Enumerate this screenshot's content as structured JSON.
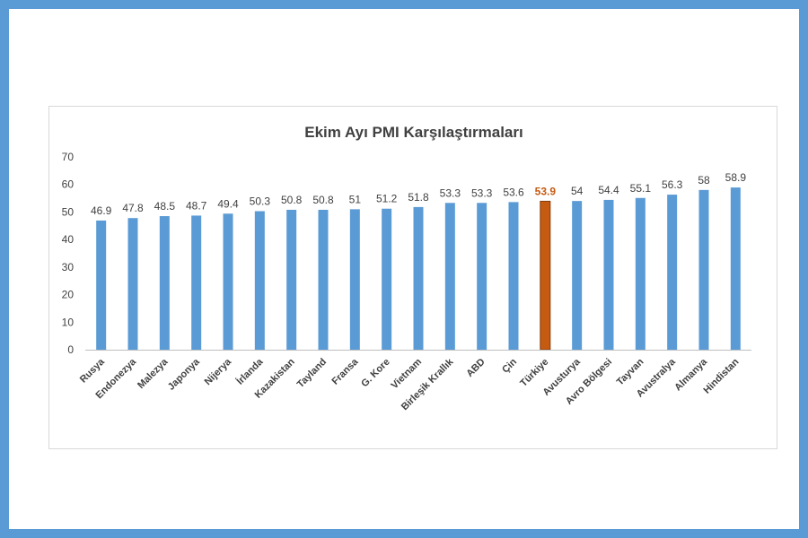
{
  "chart_data": {
    "type": "bar",
    "title": "Ekim Ayı PMI Karşılaştırmaları",
    "xlabel": "",
    "ylabel": "",
    "ylim": [
      0,
      70
    ],
    "yticks": [
      0,
      10,
      20,
      30,
      40,
      50,
      60,
      70
    ],
    "grid": false,
    "legend": "none",
    "categories": [
      "Rusya",
      "Endonezya",
      "Malezya",
      "Japonya",
      "Nijerya",
      "İrlanda",
      "Kazakistan",
      "Tayland",
      "Fransa",
      "G. Kore",
      "Vietnam",
      "Birleşik Krallık",
      "ABD",
      "Çin",
      "Türkiye",
      "Avusturya",
      "Avro Bölgesi",
      "Tayvan",
      "Avustralya",
      "Almanya",
      "Hindistan"
    ],
    "values": [
      46.9,
      47.8,
      48.5,
      48.7,
      49.4,
      50.3,
      50.8,
      50.8,
      51,
      51.2,
      51.8,
      53.3,
      53.3,
      53.6,
      53.9,
      54,
      54.4,
      55.1,
      56.3,
      58,
      58.9
    ],
    "value_labels": [
      "46.9",
      "47.8",
      "48.5",
      "48.7",
      "49.4",
      "50.3",
      "50.8",
      "50.8",
      "51",
      "51.2",
      "51.8",
      "53.3",
      "53.3",
      "53.6",
      "53.9",
      "54",
      "54.4",
      "55.1",
      "56.3",
      "58",
      "58.9"
    ],
    "highlight_index": 14,
    "colors": {
      "bar": "#5b9bd5",
      "highlight": "#c55a11",
      "frame": "#5b9bd5"
    }
  }
}
